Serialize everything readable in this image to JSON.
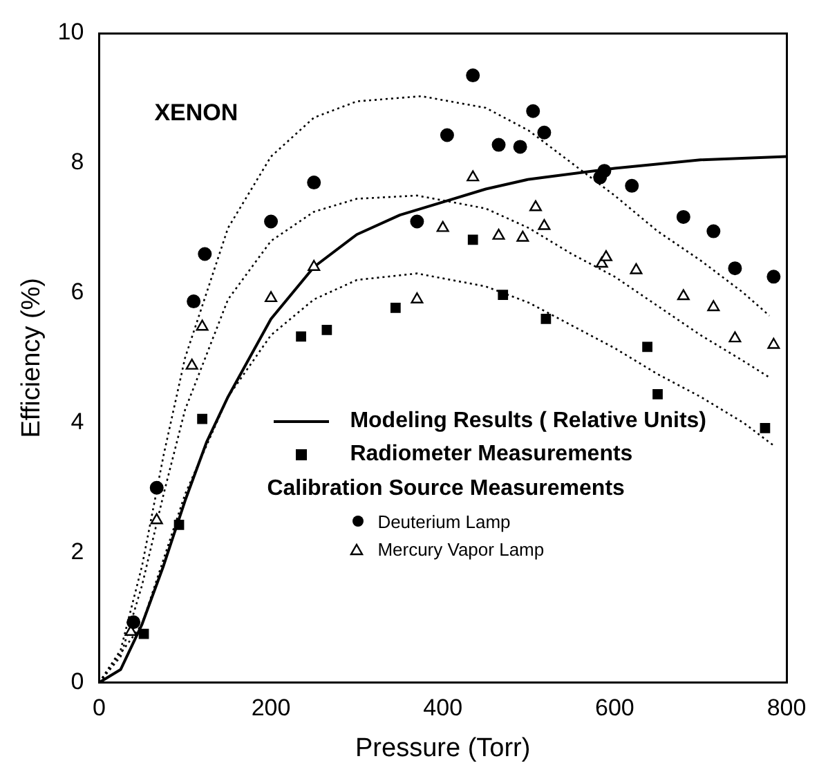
{
  "chart_data": {
    "type": "scatter",
    "xlabel": "Pressure (Torr)",
    "ylabel": "Efficiency (%)",
    "annotations": [
      "XENON"
    ],
    "legend_title": "Calibration Source Measurements",
    "legend": "bottom right",
    "grid": false,
    "xlim": [
      0,
      800
    ],
    "xticks": [
      0,
      200,
      400,
      600,
      800
    ],
    "ylim": [
      0,
      10
    ],
    "yticks": [
      0,
      2,
      4,
      6,
      8,
      10
    ],
    "series": [
      {
        "name": "Modeling Results ( Relative Units)",
        "type": "line",
        "line_style": "solid",
        "marker": "none",
        "color": "#000000",
        "x": [
          0,
          25,
          50,
          75,
          100,
          125,
          150,
          200,
          250,
          300,
          350,
          400,
          450,
          500,
          600,
          700,
          800
        ],
        "values": [
          0,
          0.2,
          0.9,
          1.8,
          2.8,
          3.7,
          4.4,
          5.6,
          6.4,
          6.9,
          7.2,
          7.4,
          7.6,
          7.75,
          7.92,
          8.05,
          8.1
        ]
      },
      {
        "name": "Radiometer Measurements",
        "type": "scatter",
        "marker": "square",
        "color": "#000000",
        "x": [
          52,
          93,
          120,
          235,
          265,
          345,
          435,
          470,
          520,
          638,
          650,
          775
        ],
        "values": [
          0.75,
          2.43,
          4.06,
          5.33,
          5.43,
          5.77,
          6.82,
          5.97,
          5.6,
          5.17,
          4.44,
          3.92
        ]
      },
      {
        "name": "Deuterium Lamp",
        "type": "scatter",
        "marker": "circle",
        "color": "#000000",
        "x": [
          40,
          67,
          110,
          123,
          200,
          250,
          370,
          405,
          435,
          465,
          490,
          505,
          518,
          583,
          588,
          620,
          680,
          715,
          740,
          785
        ],
        "values": [
          0.93,
          3.0,
          5.87,
          6.6,
          7.1,
          7.7,
          7.1,
          8.43,
          9.35,
          8.28,
          8.25,
          8.8,
          8.47,
          7.78,
          7.88,
          7.65,
          7.17,
          6.95,
          6.38,
          6.25
        ]
      },
      {
        "name": "Mercury Vapor Lamp",
        "type": "scatter",
        "marker": "triangle",
        "color": "#000000",
        "x": [
          37,
          67,
          108,
          120,
          200,
          250,
          370,
          400,
          435,
          465,
          493,
          508,
          518,
          585,
          590,
          625,
          680,
          715,
          740,
          785
        ],
        "values": [
          0.78,
          2.5,
          4.88,
          5.48,
          5.92,
          6.4,
          5.9,
          7.0,
          7.78,
          6.88,
          6.85,
          7.32,
          7.03,
          6.45,
          6.55,
          6.35,
          5.95,
          5.78,
          5.3,
          5.2
        ]
      },
      {
        "type": "line",
        "line_style": "dotted",
        "marker": "none",
        "color": "#000000",
        "x": [
          0,
          25,
          50,
          75,
          100,
          150,
          200,
          250,
          300,
          375,
          450,
          500,
          550,
          600,
          650,
          700,
          750,
          780
        ],
        "values": [
          0,
          0.5,
          1.8,
          3.5,
          5.0,
          7.0,
          8.1,
          8.7,
          8.95,
          9.03,
          8.85,
          8.5,
          8.0,
          7.5,
          6.95,
          6.5,
          6.0,
          5.65
        ]
      },
      {
        "type": "line",
        "line_style": "dotted",
        "marker": "none",
        "color": "#000000",
        "x": [
          0,
          25,
          50,
          75,
          100,
          150,
          200,
          250,
          300,
          370,
          450,
          500,
          550,
          600,
          650,
          700,
          750,
          780
        ],
        "values": [
          0,
          0.4,
          1.5,
          2.9,
          4.2,
          5.9,
          6.8,
          7.25,
          7.45,
          7.5,
          7.3,
          7.0,
          6.6,
          6.25,
          5.8,
          5.35,
          4.95,
          4.7
        ]
      },
      {
        "type": "line",
        "line_style": "dotted",
        "marker": "none",
        "color": "#000000",
        "x": [
          0,
          50,
          75,
          100,
          150,
          200,
          250,
          300,
          370,
          450,
          500,
          550,
          600,
          650,
          700,
          750,
          785
        ],
        "values": [
          0,
          0.9,
          1.9,
          2.9,
          4.4,
          5.35,
          5.9,
          6.2,
          6.3,
          6.1,
          5.85,
          5.5,
          5.15,
          4.75,
          4.4,
          4.0,
          3.65
        ]
      }
    ]
  }
}
